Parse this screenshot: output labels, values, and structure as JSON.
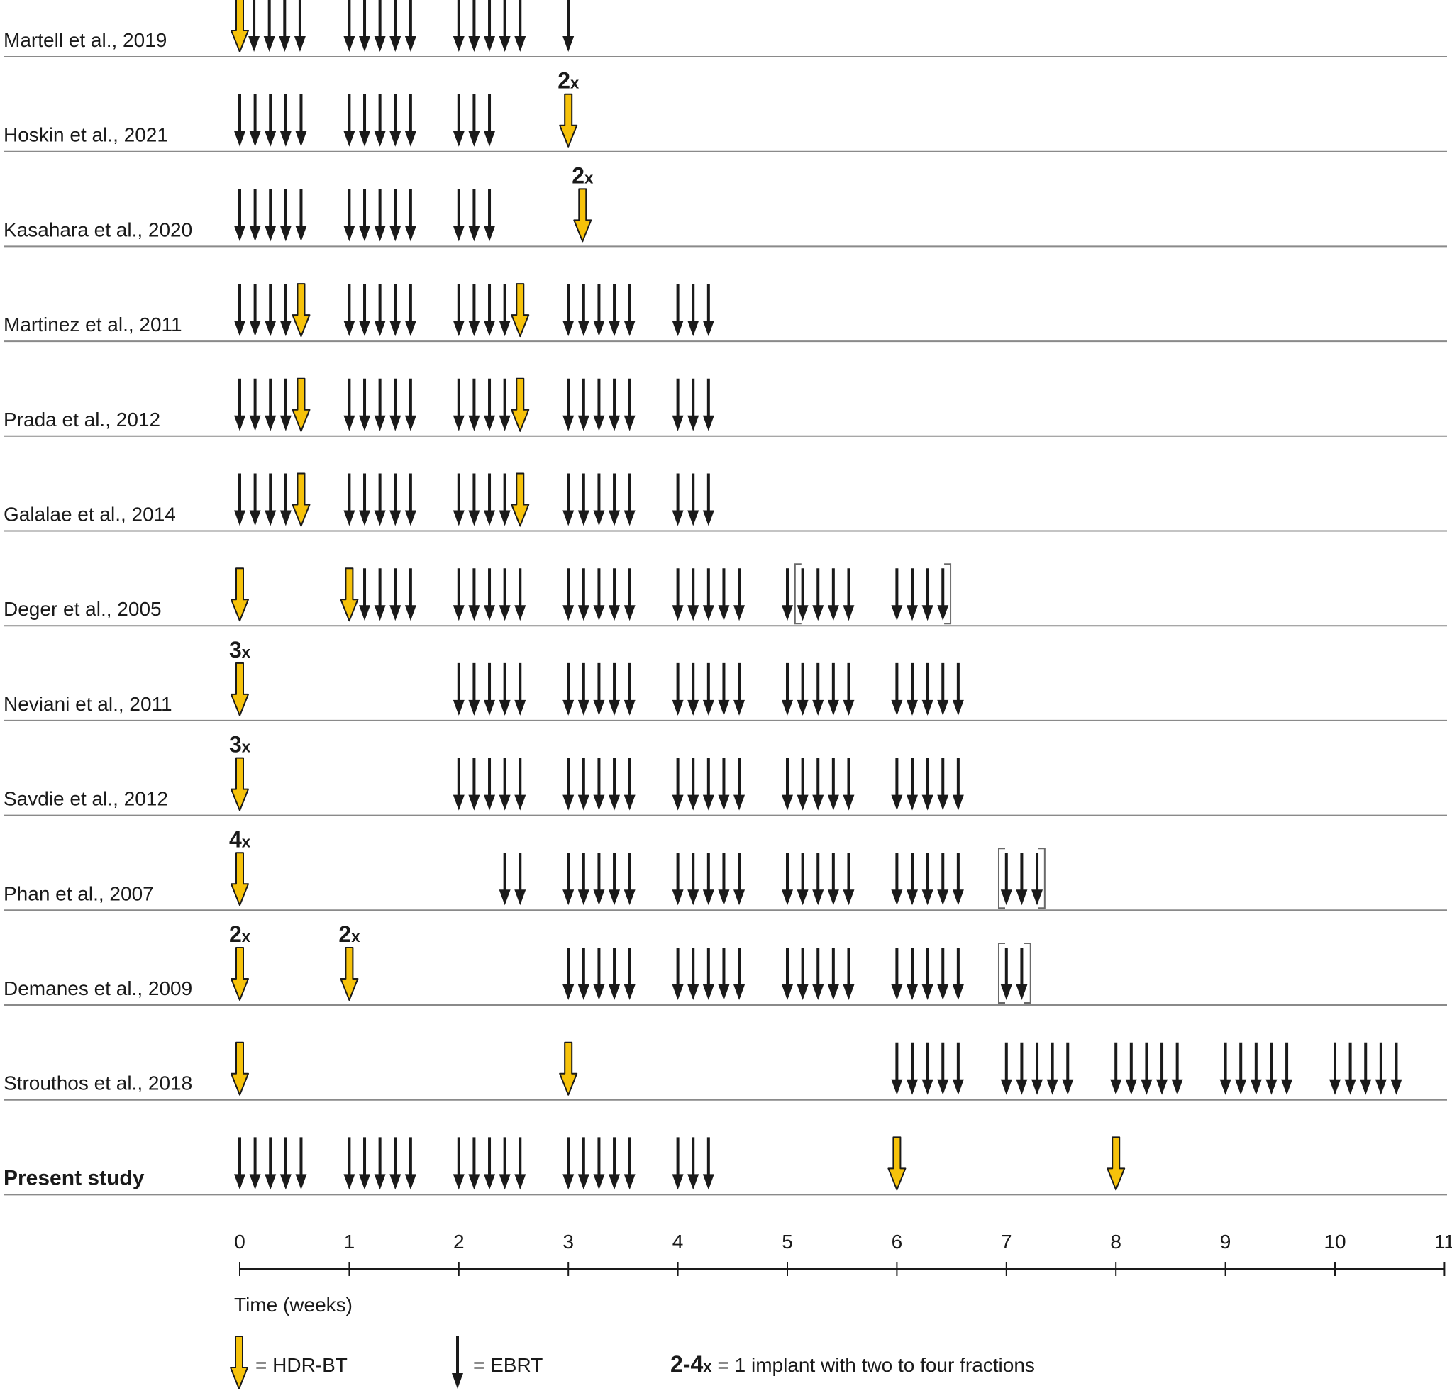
{
  "colors": {
    "hdr_fill": "#F6C20A",
    "ebrt": "#1a1a1a",
    "row_line": "#8a8a8a",
    "axis": "#1a1a1a",
    "bracket": "#6a6a6a",
    "text": "#1a1a1a"
  },
  "axis": {
    "ticks": [
      "0",
      "1",
      "2",
      "3",
      "4",
      "5",
      "6",
      "7",
      "8",
      "9",
      "10",
      "11"
    ],
    "xlim": [
      0,
      11
    ],
    "label": "Time (weeks)"
  },
  "legend": {
    "hdr_label": "= HDR-BT",
    "ebrt_label": "= EBRT",
    "multi_bold": "2-4",
    "multi_x": "x",
    "multi_text": "= 1 implant with two to four fractions"
  },
  "studies": [
    {
      "name": "Martell et al., 2019",
      "bold": false,
      "hdr": [
        {
          "t": 0
        }
      ],
      "ebrt": [
        0.13,
        0.27,
        0.41,
        0.55,
        1.0,
        1.14,
        1.28,
        1.42,
        1.56,
        2.0,
        2.14,
        2.28,
        2.42,
        2.56,
        3.0
      ],
      "brackets": []
    },
    {
      "name": "Hoskin et al., 2021",
      "bold": false,
      "hdr": [
        {
          "t": 3.0,
          "mult": "2"
        }
      ],
      "ebrt": [
        0,
        0.14,
        0.28,
        0.42,
        0.56,
        1.0,
        1.14,
        1.28,
        1.42,
        1.56,
        2.0,
        2.14,
        2.28
      ],
      "brackets": []
    },
    {
      "name": "Kasahara et al., 2020",
      "bold": false,
      "hdr": [
        {
          "t": 3.13,
          "mult": "2"
        }
      ],
      "ebrt": [
        0,
        0.14,
        0.28,
        0.42,
        0.56,
        1.0,
        1.14,
        1.28,
        1.42,
        1.56,
        2.0,
        2.14,
        2.28
      ],
      "brackets": []
    },
    {
      "name": "Martinez et al., 2011",
      "bold": false,
      "hdr": [
        {
          "t": 0.56
        },
        {
          "t": 2.56
        }
      ],
      "ebrt": [
        0,
        0.14,
        0.28,
        0.42,
        1.0,
        1.14,
        1.28,
        1.42,
        1.56,
        2.0,
        2.14,
        2.28,
        2.42,
        3.0,
        3.14,
        3.28,
        3.42,
        3.56,
        4.0,
        4.14,
        4.28
      ],
      "brackets": []
    },
    {
      "name": "Prada et al., 2012",
      "bold": false,
      "hdr": [
        {
          "t": 0.56
        },
        {
          "t": 2.56
        }
      ],
      "ebrt": [
        0,
        0.14,
        0.28,
        0.42,
        1.0,
        1.14,
        1.28,
        1.42,
        1.56,
        2.0,
        2.14,
        2.28,
        2.42,
        3.0,
        3.14,
        3.28,
        3.42,
        3.56,
        4.0,
        4.14,
        4.28
      ],
      "brackets": []
    },
    {
      "name": "Galalae et al., 2014",
      "bold": false,
      "hdr": [
        {
          "t": 0.56
        },
        {
          "t": 2.56
        }
      ],
      "ebrt": [
        0,
        0.14,
        0.28,
        0.42,
        1.0,
        1.14,
        1.28,
        1.42,
        1.56,
        2.0,
        2.14,
        2.28,
        2.42,
        3.0,
        3.14,
        3.28,
        3.42,
        3.56,
        4.0,
        4.14,
        4.28
      ],
      "brackets": []
    },
    {
      "name": "Deger et al., 2005",
      "bold": false,
      "hdr": [
        {
          "t": 0
        },
        {
          "t": 1.0
        }
      ],
      "ebrt": [
        1.14,
        1.28,
        1.42,
        1.56,
        2.0,
        2.14,
        2.28,
        2.42,
        2.56,
        3.0,
        3.14,
        3.28,
        3.42,
        3.56,
        4.0,
        4.14,
        4.28,
        4.42,
        4.56,
        5.0,
        5.14,
        5.28,
        5.42,
        5.56,
        6.0,
        6.14,
        6.28,
        6.42
      ],
      "brackets": [
        [
          5.07,
          6.49
        ]
      ]
    },
    {
      "name": "Neviani et al., 2011",
      "bold": false,
      "hdr": [
        {
          "t": 0,
          "mult": "3"
        }
      ],
      "ebrt": [
        2.0,
        2.14,
        2.28,
        2.42,
        2.56,
        3.0,
        3.14,
        3.28,
        3.42,
        3.56,
        4.0,
        4.14,
        4.28,
        4.42,
        4.56,
        5.0,
        5.14,
        5.28,
        5.42,
        5.56,
        6.0,
        6.14,
        6.28,
        6.42,
        6.56
      ],
      "brackets": []
    },
    {
      "name": "Savdie et al., 2012",
      "bold": false,
      "hdr": [
        {
          "t": 0,
          "mult": "3"
        }
      ],
      "ebrt": [
        2.0,
        2.14,
        2.28,
        2.42,
        2.56,
        3.0,
        3.14,
        3.28,
        3.42,
        3.56,
        4.0,
        4.14,
        4.28,
        4.42,
        4.56,
        5.0,
        5.14,
        5.28,
        5.42,
        5.56,
        6.0,
        6.14,
        6.28,
        6.42,
        6.56
      ],
      "brackets": []
    },
    {
      "name": "Phan et al., 2007",
      "bold": false,
      "hdr": [
        {
          "t": 0,
          "mult": "4"
        }
      ],
      "ebrt": [
        2.42,
        2.56,
        3.0,
        3.14,
        3.28,
        3.42,
        3.56,
        4.0,
        4.14,
        4.28,
        4.42,
        4.56,
        5.0,
        5.14,
        5.28,
        5.42,
        5.56,
        6.0,
        6.14,
        6.28,
        6.42,
        6.56,
        7.0,
        7.14,
        7.28
      ],
      "brackets": [
        [
          6.93,
          7.35
        ]
      ]
    },
    {
      "name": "Demanes et al., 2009",
      "bold": false,
      "hdr": [
        {
          "t": 0,
          "mult": "2"
        },
        {
          "t": 1.0,
          "mult": "2"
        }
      ],
      "ebrt": [
        3.0,
        3.14,
        3.28,
        3.42,
        3.56,
        4.0,
        4.14,
        4.28,
        4.42,
        4.56,
        5.0,
        5.14,
        5.28,
        5.42,
        5.56,
        6.0,
        6.14,
        6.28,
        6.42,
        6.56,
        7.0,
        7.14
      ],
      "brackets": [
        [
          6.93,
          7.22
        ]
      ]
    },
    {
      "name": "Strouthos et al., 2018",
      "bold": false,
      "hdr": [
        {
          "t": 0
        },
        {
          "t": 3.0
        }
      ],
      "ebrt": [
        6.0,
        6.14,
        6.28,
        6.42,
        6.56,
        7.0,
        7.14,
        7.28,
        7.42,
        7.56,
        8.0,
        8.14,
        8.28,
        8.42,
        8.56,
        9.0,
        9.14,
        9.28,
        9.42,
        9.56,
        10.0,
        10.14,
        10.28,
        10.42,
        10.56
      ],
      "brackets": []
    },
    {
      "name": "Present study",
      "bold": true,
      "hdr": [
        {
          "t": 6.0
        },
        {
          "t": 8.0
        }
      ],
      "ebrt": [
        0,
        0.14,
        0.28,
        0.42,
        0.56,
        1.0,
        1.14,
        1.28,
        1.42,
        1.56,
        2.0,
        2.14,
        2.28,
        2.42,
        2.56,
        3.0,
        3.14,
        3.28,
        3.42,
        3.56,
        4.0,
        4.14,
        4.28
      ],
      "brackets": []
    }
  ]
}
